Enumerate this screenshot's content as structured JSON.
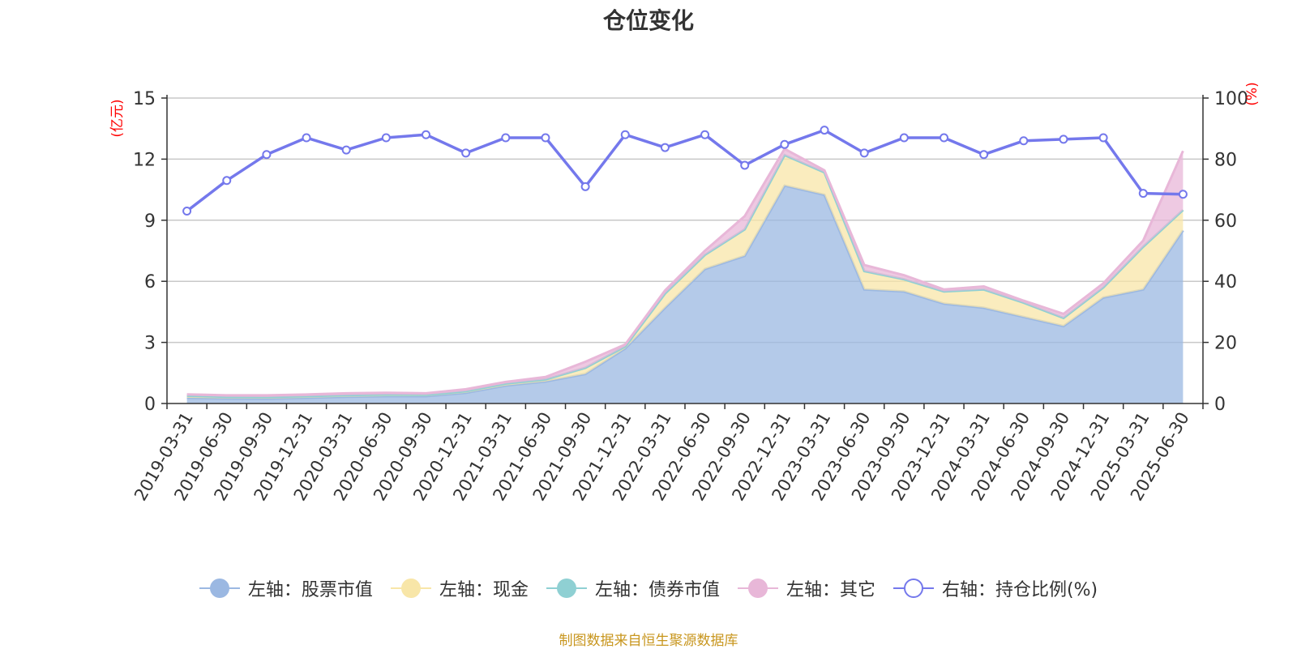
{
  "chart_data": {
    "type": "area",
    "title": "仓位变化",
    "source_note": "制图数据来自恒生聚源数据库",
    "left_axis": {
      "unit_label": "(亿元)",
      "ylim": [
        0,
        15
      ],
      "ticks": [
        0,
        3,
        6,
        9,
        12,
        15
      ]
    },
    "right_axis": {
      "unit_label": "(%)",
      "ylim": [
        0,
        100
      ],
      "ticks": [
        0,
        20,
        40,
        60,
        80,
        100
      ]
    },
    "grid": true,
    "legend_position": "bottom-center",
    "categories": [
      "2019-03-31",
      "2019-06-30",
      "2019-09-30",
      "2019-12-31",
      "2020-03-31",
      "2020-06-30",
      "2020-09-30",
      "2020-12-31",
      "2021-03-31",
      "2021-06-30",
      "2021-09-30",
      "2021-12-31",
      "2022-03-31",
      "2022-06-30",
      "2022-09-30",
      "2022-12-31",
      "2023-03-31",
      "2023-06-30",
      "2023-09-30",
      "2023-12-31",
      "2024-03-31",
      "2024-06-30",
      "2024-09-30",
      "2024-12-31",
      "2025-03-31",
      "2025-06-30"
    ],
    "series": [
      {
        "name": "左轴：股票市值",
        "axis": "left",
        "kind": "stacked-area",
        "color": "#9bb8e2",
        "values": [
          0.28,
          0.25,
          0.24,
          0.28,
          0.33,
          0.36,
          0.36,
          0.52,
          0.88,
          1.08,
          1.45,
          2.7,
          4.7,
          6.6,
          7.25,
          10.7,
          10.25,
          5.6,
          5.5,
          4.9,
          4.7,
          4.25,
          3.8,
          5.2,
          5.6,
          8.5
        ]
      },
      {
        "name": "左轴：现金",
        "axis": "left",
        "kind": "stacked-area",
        "color": "#f8e6a8",
        "values": [
          0.1,
          0.08,
          0.08,
          0.08,
          0.08,
          0.08,
          0.07,
          0.08,
          0.1,
          0.1,
          0.3,
          0.1,
          0.7,
          0.7,
          1.3,
          1.5,
          1.1,
          0.9,
          0.6,
          0.6,
          0.9,
          0.7,
          0.4,
          0.5,
          2.1,
          1.0
        ]
      },
      {
        "name": "左轴：债券市值",
        "axis": "left",
        "kind": "stacked-area",
        "color": "#8fd0d3",
        "values": [
          0,
          0,
          0,
          0,
          0,
          0,
          0,
          0,
          0,
          0,
          0,
          0,
          0,
          0,
          0,
          0,
          0,
          0,
          0,
          0,
          0,
          0,
          0,
          0,
          0,
          0
        ]
      },
      {
        "name": "左轴：其它",
        "axis": "left",
        "kind": "stacked-area",
        "color": "#e8b7d8",
        "values": [
          0.07,
          0.07,
          0.08,
          0.08,
          0.09,
          0.09,
          0.07,
          0.1,
          0.08,
          0.12,
          0.3,
          0.1,
          0.15,
          0.2,
          0.65,
          0.3,
          0.1,
          0.3,
          0.2,
          0.1,
          0.15,
          0.1,
          0.2,
          0.2,
          0.3,
          2.9
        ]
      },
      {
        "name": "右轴：持仓比例(%)",
        "axis": "right",
        "kind": "line",
        "color": "#7478ec",
        "values": [
          63,
          73,
          81.5,
          87,
          83,
          87,
          88,
          82,
          87,
          87,
          71,
          88,
          83.8,
          88,
          78,
          84.8,
          89.5,
          82,
          87,
          87,
          81.5,
          86,
          86.5,
          87,
          68.8,
          68.5
        ]
      }
    ]
  }
}
